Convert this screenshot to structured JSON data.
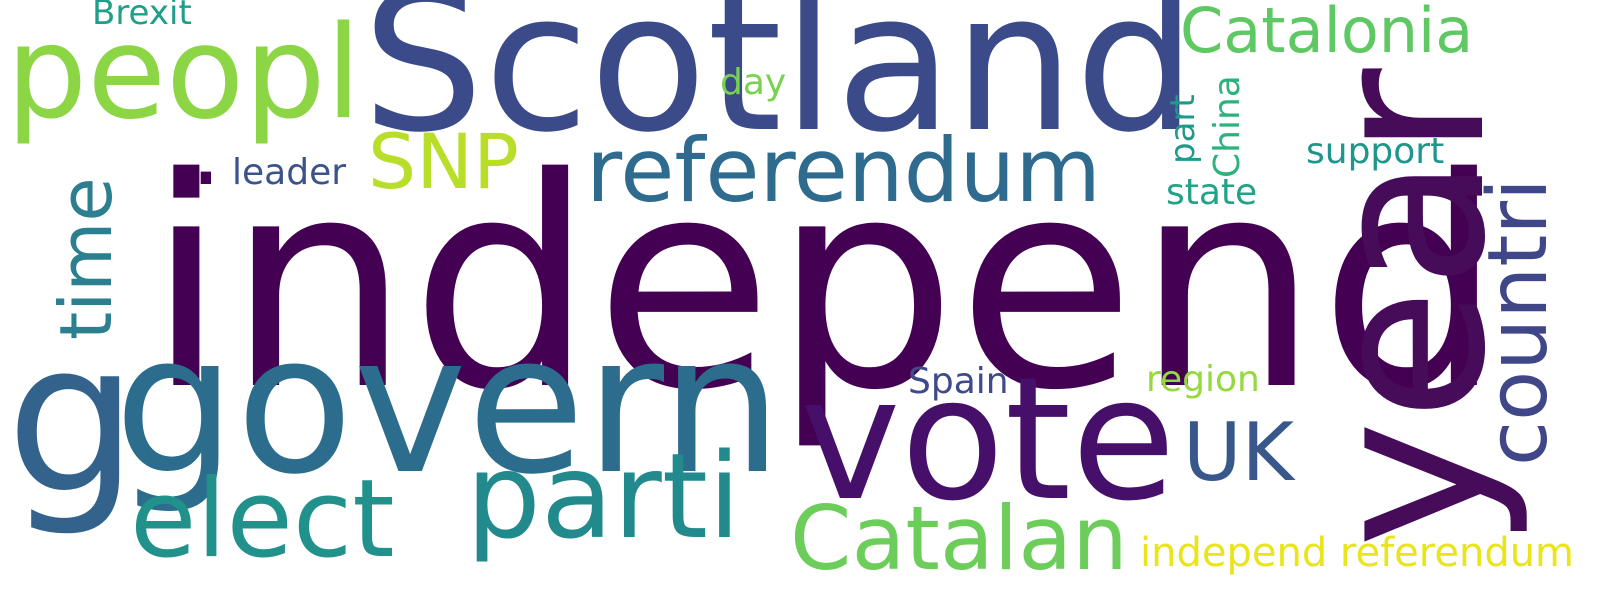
{
  "words": [
    {
      "key": "independ",
      "text": "independ",
      "color": "#440154"
    },
    {
      "key": "scotland",
      "text": "Scotland",
      "color": "#3b4b8a"
    },
    {
      "key": "govern",
      "text": "govern",
      "color": "#2c6d8e"
    },
    {
      "key": "year",
      "text": "year",
      "color": "#460c5a"
    },
    {
      "key": "vote",
      "text": "vote",
      "color": "#46106a"
    },
    {
      "key": "peopl",
      "text": "peopl",
      "color": "#8cd646"
    },
    {
      "key": "parti",
      "text": "parti",
      "color": "#22898c"
    },
    {
      "key": "referendum",
      "text": "referendum",
      "color": "#2f6b8e"
    },
    {
      "key": "elect",
      "text": "elect",
      "color": "#21918c"
    },
    {
      "key": "catalan",
      "text": "Catalan",
      "color": "#6ccd5a"
    },
    {
      "key": "countri",
      "text": "countri",
      "color": "#3f4788"
    },
    {
      "key": "g",
      "text": "g",
      "color": "#33638d"
    },
    {
      "key": "time",
      "text": "time",
      "color": "#2c7f8e"
    },
    {
      "key": "catalonia",
      "text": "Catalonia",
      "color": "#5ec962"
    },
    {
      "key": "uk",
      "text": "UK",
      "color": "#38588c"
    },
    {
      "key": "snp",
      "text": "SNP",
      "color": "#b8de29"
    },
    {
      "key": "independ_referendum",
      "text": "independ referendum",
      "color": "#e9e51a"
    },
    {
      "key": "brexit",
      "text": "Brexit",
      "color": "#1f9e89"
    },
    {
      "key": "day",
      "text": "day",
      "color": "#7ad151"
    },
    {
      "key": "leader",
      "text": "leader",
      "color": "#3b528b"
    },
    {
      "key": "support",
      "text": "support",
      "color": "#1f968b"
    },
    {
      "key": "state",
      "text": "state",
      "color": "#20a386"
    },
    {
      "key": "part",
      "text": "part",
      "color": "#1f9a8a"
    },
    {
      "key": "china",
      "text": "China",
      "color": "#2db27d"
    },
    {
      "key": "spain",
      "text": "Spain",
      "color": "#3e4a89"
    },
    {
      "key": "region",
      "text": "region",
      "color": "#95d840"
    },
    {
      "key": "dot",
      "text": ".",
      "color": "#440154"
    }
  ]
}
